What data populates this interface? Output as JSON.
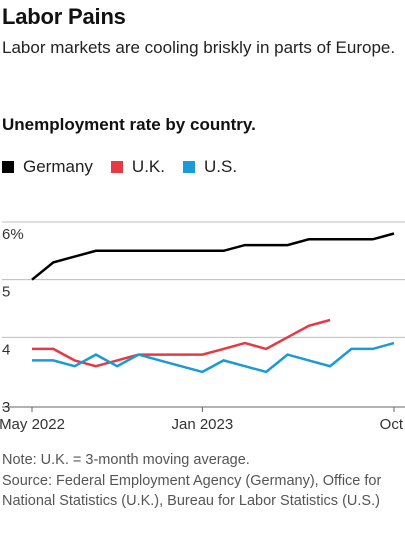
{
  "header": {
    "title": "Labor Pains",
    "subtitle": "Labor markets are cooling briskly in parts of Europe."
  },
  "footer": {
    "note": "Note: U.K. = 3-month moving average.",
    "source": "Source: Federal Employment Agency (Germany), Office for National Statistics (U.K.), Bureau for Labor Statistics (U.S.)"
  },
  "chart_data": {
    "type": "line",
    "title": "Unemployment rate by country.",
    "xlabel": "",
    "ylabel": "",
    "x": [
      "2022-05",
      "2022-06",
      "2022-07",
      "2022-08",
      "2022-09",
      "2022-10",
      "2022-11",
      "2022-12",
      "2023-01",
      "2023-02",
      "2023-03",
      "2023-04",
      "2023-05",
      "2023-06",
      "2023-07",
      "2023-08",
      "2023-09",
      "2023-10"
    ],
    "x_tick_labels": [
      {
        "x": "2022-05",
        "label": "May 2022"
      },
      {
        "x": "2023-01",
        "label": "Jan 2023"
      },
      {
        "x": "2023-10",
        "label": "Oct"
      }
    ],
    "y_ticks": [
      {
        "value": 6,
        "label": "6%"
      },
      {
        "value": 5,
        "label": "5"
      },
      {
        "value": 4,
        "label": "4"
      },
      {
        "value": 3,
        "label": "3"
      }
    ],
    "ylim": [
      3,
      6
    ],
    "grid": "horizontal",
    "legend_position": "top-left",
    "series": [
      {
        "name": "Germany",
        "color": "#000000",
        "values": [
          5.0,
          5.3,
          5.4,
          5.5,
          5.5,
          5.5,
          5.5,
          5.5,
          5.5,
          5.5,
          5.6,
          5.6,
          5.6,
          5.7,
          5.7,
          5.7,
          5.7,
          5.8
        ]
      },
      {
        "name": "U.K.",
        "color": "#e63946",
        "values": [
          3.8,
          3.8,
          3.6,
          3.5,
          3.6,
          3.7,
          3.7,
          3.7,
          3.7,
          3.8,
          3.9,
          3.8,
          4.0,
          4.2,
          4.3,
          null,
          null,
          null
        ]
      },
      {
        "name": "U.S.",
        "color": "#1a9ad6",
        "values": [
          3.6,
          3.6,
          3.5,
          3.7,
          3.5,
          3.7,
          3.6,
          3.5,
          3.4,
          3.6,
          3.5,
          3.4,
          3.7,
          3.6,
          3.5,
          3.8,
          3.8,
          3.9
        ]
      }
    ]
  }
}
